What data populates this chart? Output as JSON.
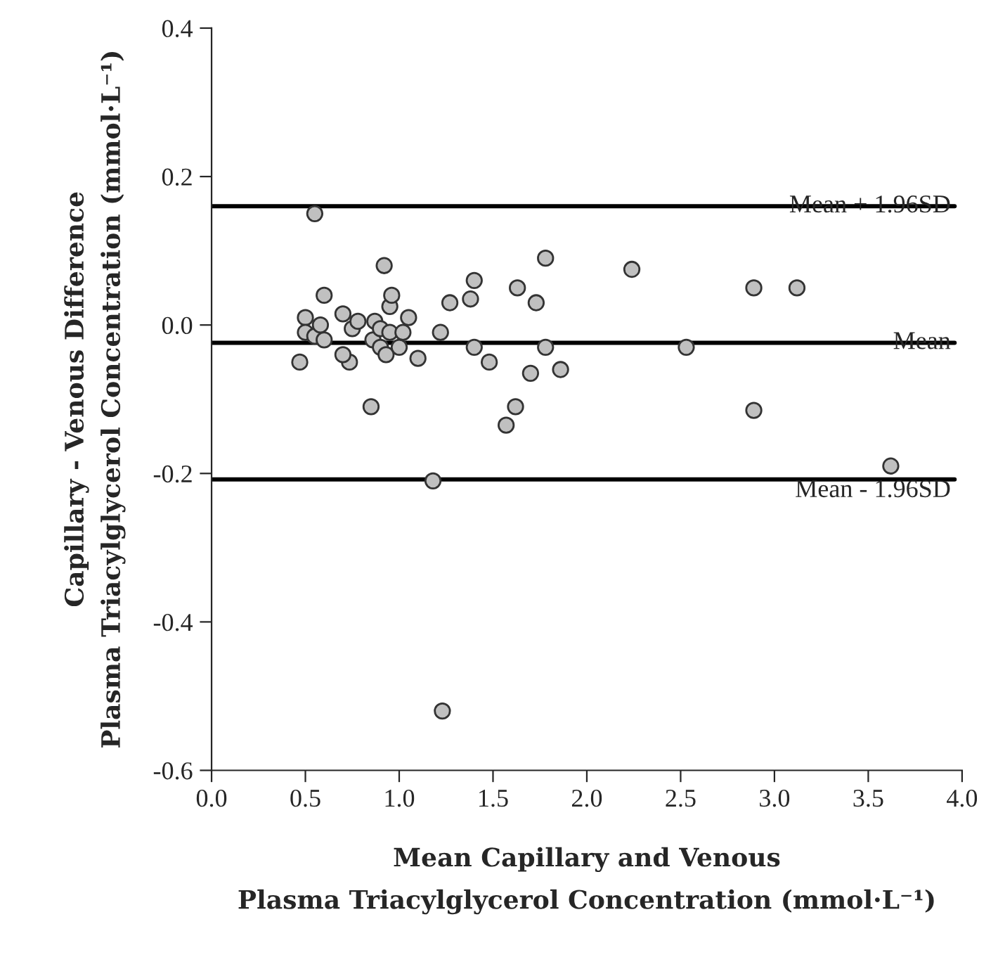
{
  "chart_data": {
    "type": "scatter",
    "xlabel": "Mean Capillary and Venous\nPlasma Triacylglycerol Concentration (mmol·L⁻¹)",
    "ylabel": "Capillary - Venous Difference\nPlasma Triacylglycerol Concentration (mmol·L⁻¹)",
    "series": [
      {
        "color": "#c0c0c0",
        "x": [
          0.55,
          0.47,
          0.5,
          0.5,
          0.55,
          0.6,
          0.58,
          0.6,
          0.7,
          0.735,
          0.75,
          0.7,
          0.78,
          0.85,
          0.87,
          0.86,
          0.9,
          0.92,
          0.93,
          0.95,
          0.96,
          0.9,
          0.95,
          1.0,
          1.02,
          1.05,
          1.1,
          1.22,
          1.27,
          1.38,
          1.4,
          1.4,
          1.48,
          1.57,
          1.62,
          1.63,
          1.7,
          1.73,
          1.78,
          1.78,
          1.86,
          1.18,
          1.23,
          2.24,
          2.53,
          2.89,
          2.89,
          3.12,
          3.62
        ],
        "values": [
          0.15,
          -0.05,
          0.01,
          -0.01,
          -0.015,
          0.04,
          0.0,
          -0.02,
          0.015,
          -0.05,
          -0.005,
          -0.04,
          0.005,
          -0.11,
          0.005,
          -0.02,
          -0.03,
          0.08,
          -0.04,
          0.025,
          0.04,
          -0.005,
          -0.01,
          -0.03,
          -0.01,
          0.01,
          -0.045,
          -0.01,
          0.03,
          0.035,
          0.06,
          -0.03,
          -0.05,
          -0.135,
          -0.11,
          0.05,
          -0.065,
          0.03,
          0.09,
          -0.03,
          -0.06,
          -0.21,
          -0.52,
          0.075,
          -0.03,
          0.05,
          -0.115,
          0.05,
          -0.19
        ]
      }
    ],
    "marker": "circle",
    "xlim": [
      0.0,
      4.0
    ],
    "xticks": [
      {
        "value": 0,
        "label": "0.0"
      },
      0.5,
      {
        "value": 1,
        "label": "1.0"
      },
      1.5,
      {
        "value": 2,
        "label": "2.0"
      },
      2.5,
      {
        "value": 3,
        "label": "3.0"
      },
      3.5,
      {
        "value": 4,
        "label": "4.0"
      }
    ],
    "ylim": [
      -0.6,
      0.4
    ],
    "yticks": [
      -0.6,
      -0.4,
      -0.2,
      {
        "value": 0,
        "label": "0.0"
      },
      0.2,
      0.4
    ],
    "ref_lines": [
      {
        "axis": "y",
        "value": 0.16,
        "label": "Mean + 1.96SD",
        "color": "#000000"
      },
      {
        "axis": "y",
        "value": -0.024,
        "label": "Mean",
        "color": "#000000"
      },
      {
        "axis": "y",
        "value": -0.208,
        "label": "Mean - 1.96SD",
        "color": "#000000"
      }
    ],
    "grid": false,
    "legend": false
  }
}
